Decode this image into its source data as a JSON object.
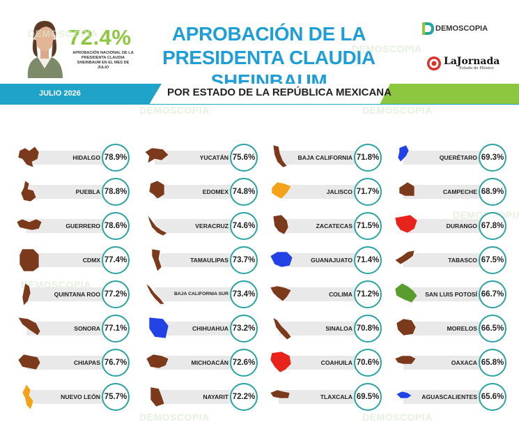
{
  "header": {
    "big_pct": "72.4%",
    "sub_note": "APROBACIÓN NACIONAL DE LA PRESIDENTA CLAUDIA SHEINBAUM EN EL MES DE JULIO",
    "title": "APROBACIÓN DE LA PRESIDENTA CLAUDIA SHEINBAUM",
    "logo_demoscopia": "DEMOSCOPIA",
    "logo_jornada": "LaJornada",
    "logo_jornada_sub": "Estado de México"
  },
  "band": {
    "date": "JULIO 2026",
    "subtitle": "POR ESTADO DE LA REPÚBLICA MEXICANA"
  },
  "watermark": "DEMOSCOPIA",
  "colors": {
    "title_blue": "#1f9ed6",
    "accent_green": "#8dc63f",
    "band_teal": "#1fa3c9",
    "ring": "#2aa3a0",
    "shape_brown": "#7b3a1c",
    "shape_blue": "#2342e6",
    "shape_orange": "#f4a21a",
    "shape_red": "#e8231b",
    "shape_green": "#5a9c2e"
  },
  "chart_data": {
    "type": "table",
    "title": "APROBACIÓN DE LA PRESIDENTA CLAUDIA SHEINBAUM",
    "subtitle": "POR ESTADO DE LA REPÚBLICA MEXICANA",
    "rows": [
      {
        "state": "HIDALGO",
        "pct": "78.9%",
        "value": 78.9,
        "color": "#7b3a1c"
      },
      {
        "state": "PUEBLA",
        "pct": "78.8%",
        "value": 78.8,
        "color": "#7b3a1c"
      },
      {
        "state": "GUERRERO",
        "pct": "78.6%",
        "value": 78.6,
        "color": "#7b3a1c"
      },
      {
        "state": "CDMX",
        "pct": "77.4%",
        "value": 77.4,
        "color": "#7b3a1c"
      },
      {
        "state": "QUINTANA ROO",
        "pct": "77.2%",
        "value": 77.2,
        "color": "#7b3a1c"
      },
      {
        "state": "SONORA",
        "pct": "77.1%",
        "value": 77.1,
        "color": "#7b3a1c"
      },
      {
        "state": "CHIAPAS",
        "pct": "76.7%",
        "value": 76.7,
        "color": "#7b3a1c"
      },
      {
        "state": "NUEVO LEÓN",
        "pct": "75.7%",
        "value": 75.7,
        "color": "#f4a21a"
      },
      {
        "state": "YUCATÁN",
        "pct": "75.6%",
        "value": 75.6,
        "color": "#7b3a1c"
      },
      {
        "state": "EDOMEX",
        "pct": "74.8%",
        "value": 74.8,
        "color": "#7b3a1c"
      },
      {
        "state": "VERACRUZ",
        "pct": "74.6%",
        "value": 74.6,
        "color": "#7b3a1c"
      },
      {
        "state": "TAMAULIPAS",
        "pct": "73.7%",
        "value": 73.7,
        "color": "#7b3a1c"
      },
      {
        "state": "BAJA CALIFORNIA SUR",
        "pct": "73.4%",
        "value": 73.4,
        "color": "#7b3a1c"
      },
      {
        "state": "CHIHUAHUA",
        "pct": "73.2%",
        "value": 73.2,
        "color": "#2342e6"
      },
      {
        "state": "MICHOACÁN",
        "pct": "72.6%",
        "value": 72.6,
        "color": "#7b3a1c"
      },
      {
        "state": "NAYARIT",
        "pct": "72.2%",
        "value": 72.2,
        "color": "#7b3a1c"
      },
      {
        "state": "BAJA CALIFORNIA",
        "pct": "71.8%",
        "value": 71.8,
        "color": "#7b3a1c"
      },
      {
        "state": "JALISCO",
        "pct": "71.7%",
        "value": 71.7,
        "color": "#f4a21a"
      },
      {
        "state": "ZACATECAS",
        "pct": "71.5%",
        "value": 71.5,
        "color": "#7b3a1c"
      },
      {
        "state": "GUANAJUATO",
        "pct": "71.4%",
        "value": 71.4,
        "color": "#2342e6"
      },
      {
        "state": "COLIMA",
        "pct": "71.2%",
        "value": 71.2,
        "color": "#7b3a1c"
      },
      {
        "state": "SINALOA",
        "pct": "70.8%",
        "value": 70.8,
        "color": "#7b3a1c"
      },
      {
        "state": "COAHUILA",
        "pct": "70.6%",
        "value": 70.6,
        "color": "#e8231b"
      },
      {
        "state": "TLAXCALA",
        "pct": "69.5%",
        "value": 69.5,
        "color": "#7b3a1c"
      },
      {
        "state": "QUERÉTARO",
        "pct": "69.3%",
        "value": 69.3,
        "color": "#2342e6"
      },
      {
        "state": "CAMPECHE",
        "pct": "68.9%",
        "value": 68.9,
        "color": "#7b3a1c"
      },
      {
        "state": "DURANGO",
        "pct": "67.8%",
        "value": 67.8,
        "color": "#e8231b"
      },
      {
        "state": "TABASCO",
        "pct": "67.5%",
        "value": 67.5,
        "color": "#7b3a1c"
      },
      {
        "state": "SAN LUIS POTOSÍ",
        "pct": "66.7%",
        "value": 66.7,
        "color": "#5a9c2e"
      },
      {
        "state": "MORELOS",
        "pct": "66.5%",
        "value": 66.5,
        "color": "#7b3a1c"
      },
      {
        "state": "OAXACA",
        "pct": "65.8%",
        "value": 65.8,
        "color": "#7b3a1c"
      },
      {
        "state": "AGUASCALIENTES",
        "pct": "65.6%",
        "value": 65.6,
        "color": "#2342e6"
      }
    ]
  }
}
